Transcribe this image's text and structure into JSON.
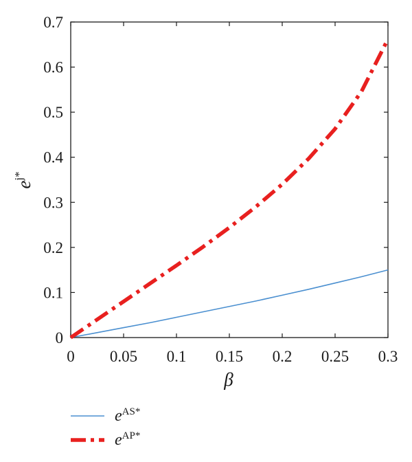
{
  "chart_data": {
    "type": "line",
    "title": "",
    "xlabel": "β",
    "ylabel": {
      "base": "e",
      "sup": "j*"
    },
    "xlim": [
      0,
      0.3
    ],
    "ylim": [
      0,
      0.7
    ],
    "x_ticks": [
      "0",
      "0.05",
      "0.1",
      "0.15",
      "0.2",
      "0.25",
      "0.3"
    ],
    "y_ticks": [
      "0",
      "0.1",
      "0.2",
      "0.3",
      "0.4",
      "0.5",
      "0.6",
      "0.7"
    ],
    "grid": false,
    "legend_position": "bottom-left, below plot",
    "x": [
      0,
      0.025,
      0.05,
      0.075,
      0.1,
      0.125,
      0.15,
      0.175,
      0.2,
      0.225,
      0.25,
      0.275,
      0.3
    ],
    "series": [
      {
        "label_base": "e",
        "label_sup": "AS*",
        "color": "#4a8fd0",
        "style": "solid",
        "values": [
          0,
          0.011,
          0.022,
          0.033,
          0.045,
          0.057,
          0.069,
          0.081,
          0.094,
          0.107,
          0.121,
          0.135,
          0.15
        ]
      },
      {
        "label_base": "e",
        "label_sup": "AP*",
        "color": "#e8201f",
        "style": "dash-dot",
        "values": [
          0,
          0.04,
          0.08,
          0.12,
          0.16,
          0.201,
          0.244,
          0.29,
          0.34,
          0.397,
          0.463,
          0.546,
          0.662
        ]
      }
    ]
  }
}
